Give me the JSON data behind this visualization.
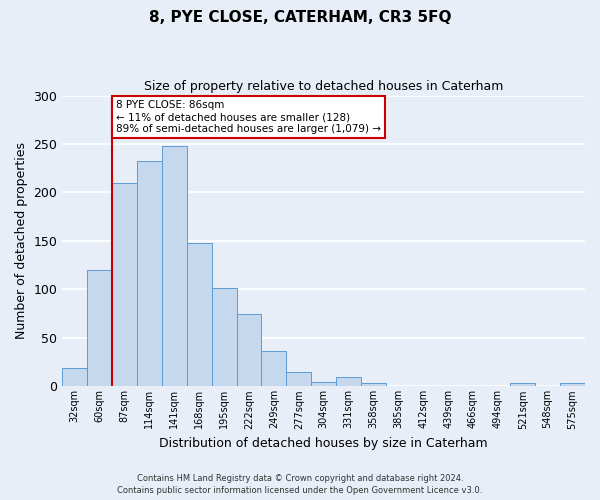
{
  "title": "8, PYE CLOSE, CATERHAM, CR3 5FQ",
  "subtitle": "Size of property relative to detached houses in Caterham",
  "xlabel": "Distribution of detached houses by size in Caterham",
  "ylabel": "Number of detached properties",
  "bin_labels": [
    "32sqm",
    "60sqm",
    "87sqm",
    "114sqm",
    "141sqm",
    "168sqm",
    "195sqm",
    "222sqm",
    "249sqm",
    "277sqm",
    "304sqm",
    "331sqm",
    "358sqm",
    "385sqm",
    "412sqm",
    "439sqm",
    "466sqm",
    "494sqm",
    "521sqm",
    "548sqm",
    "575sqm"
  ],
  "bar_values": [
    19,
    120,
    210,
    232,
    248,
    148,
    101,
    75,
    36,
    15,
    5,
    10,
    3,
    0,
    0,
    0,
    0,
    0,
    3,
    0,
    3
  ],
  "bar_color": "#c5d8ed",
  "bar_edge_color": "#5b9bd5",
  "ylim": [
    0,
    300
  ],
  "yticks": [
    0,
    50,
    100,
    150,
    200,
    250,
    300
  ],
  "property_line_index": 2,
  "property_line_color": "#cc0000",
  "annotation_text": "8 PYE CLOSE: 86sqm\n← 11% of detached houses are smaller (128)\n89% of semi-detached houses are larger (1,079) →",
  "annotation_box_color": "#cc0000",
  "footnote_line1": "Contains HM Land Registry data © Crown copyright and database right 2024.",
  "footnote_line2": "Contains public sector information licensed under the Open Government Licence v3.0.",
  "background_color": "#e8eef7",
  "grid_color": "#ffffff",
  "title_fontsize": 11,
  "subtitle_fontsize": 9,
  "ylabel_fontsize": 9,
  "xlabel_fontsize": 9,
  "xtick_fontsize": 7,
  "ytick_fontsize": 9
}
